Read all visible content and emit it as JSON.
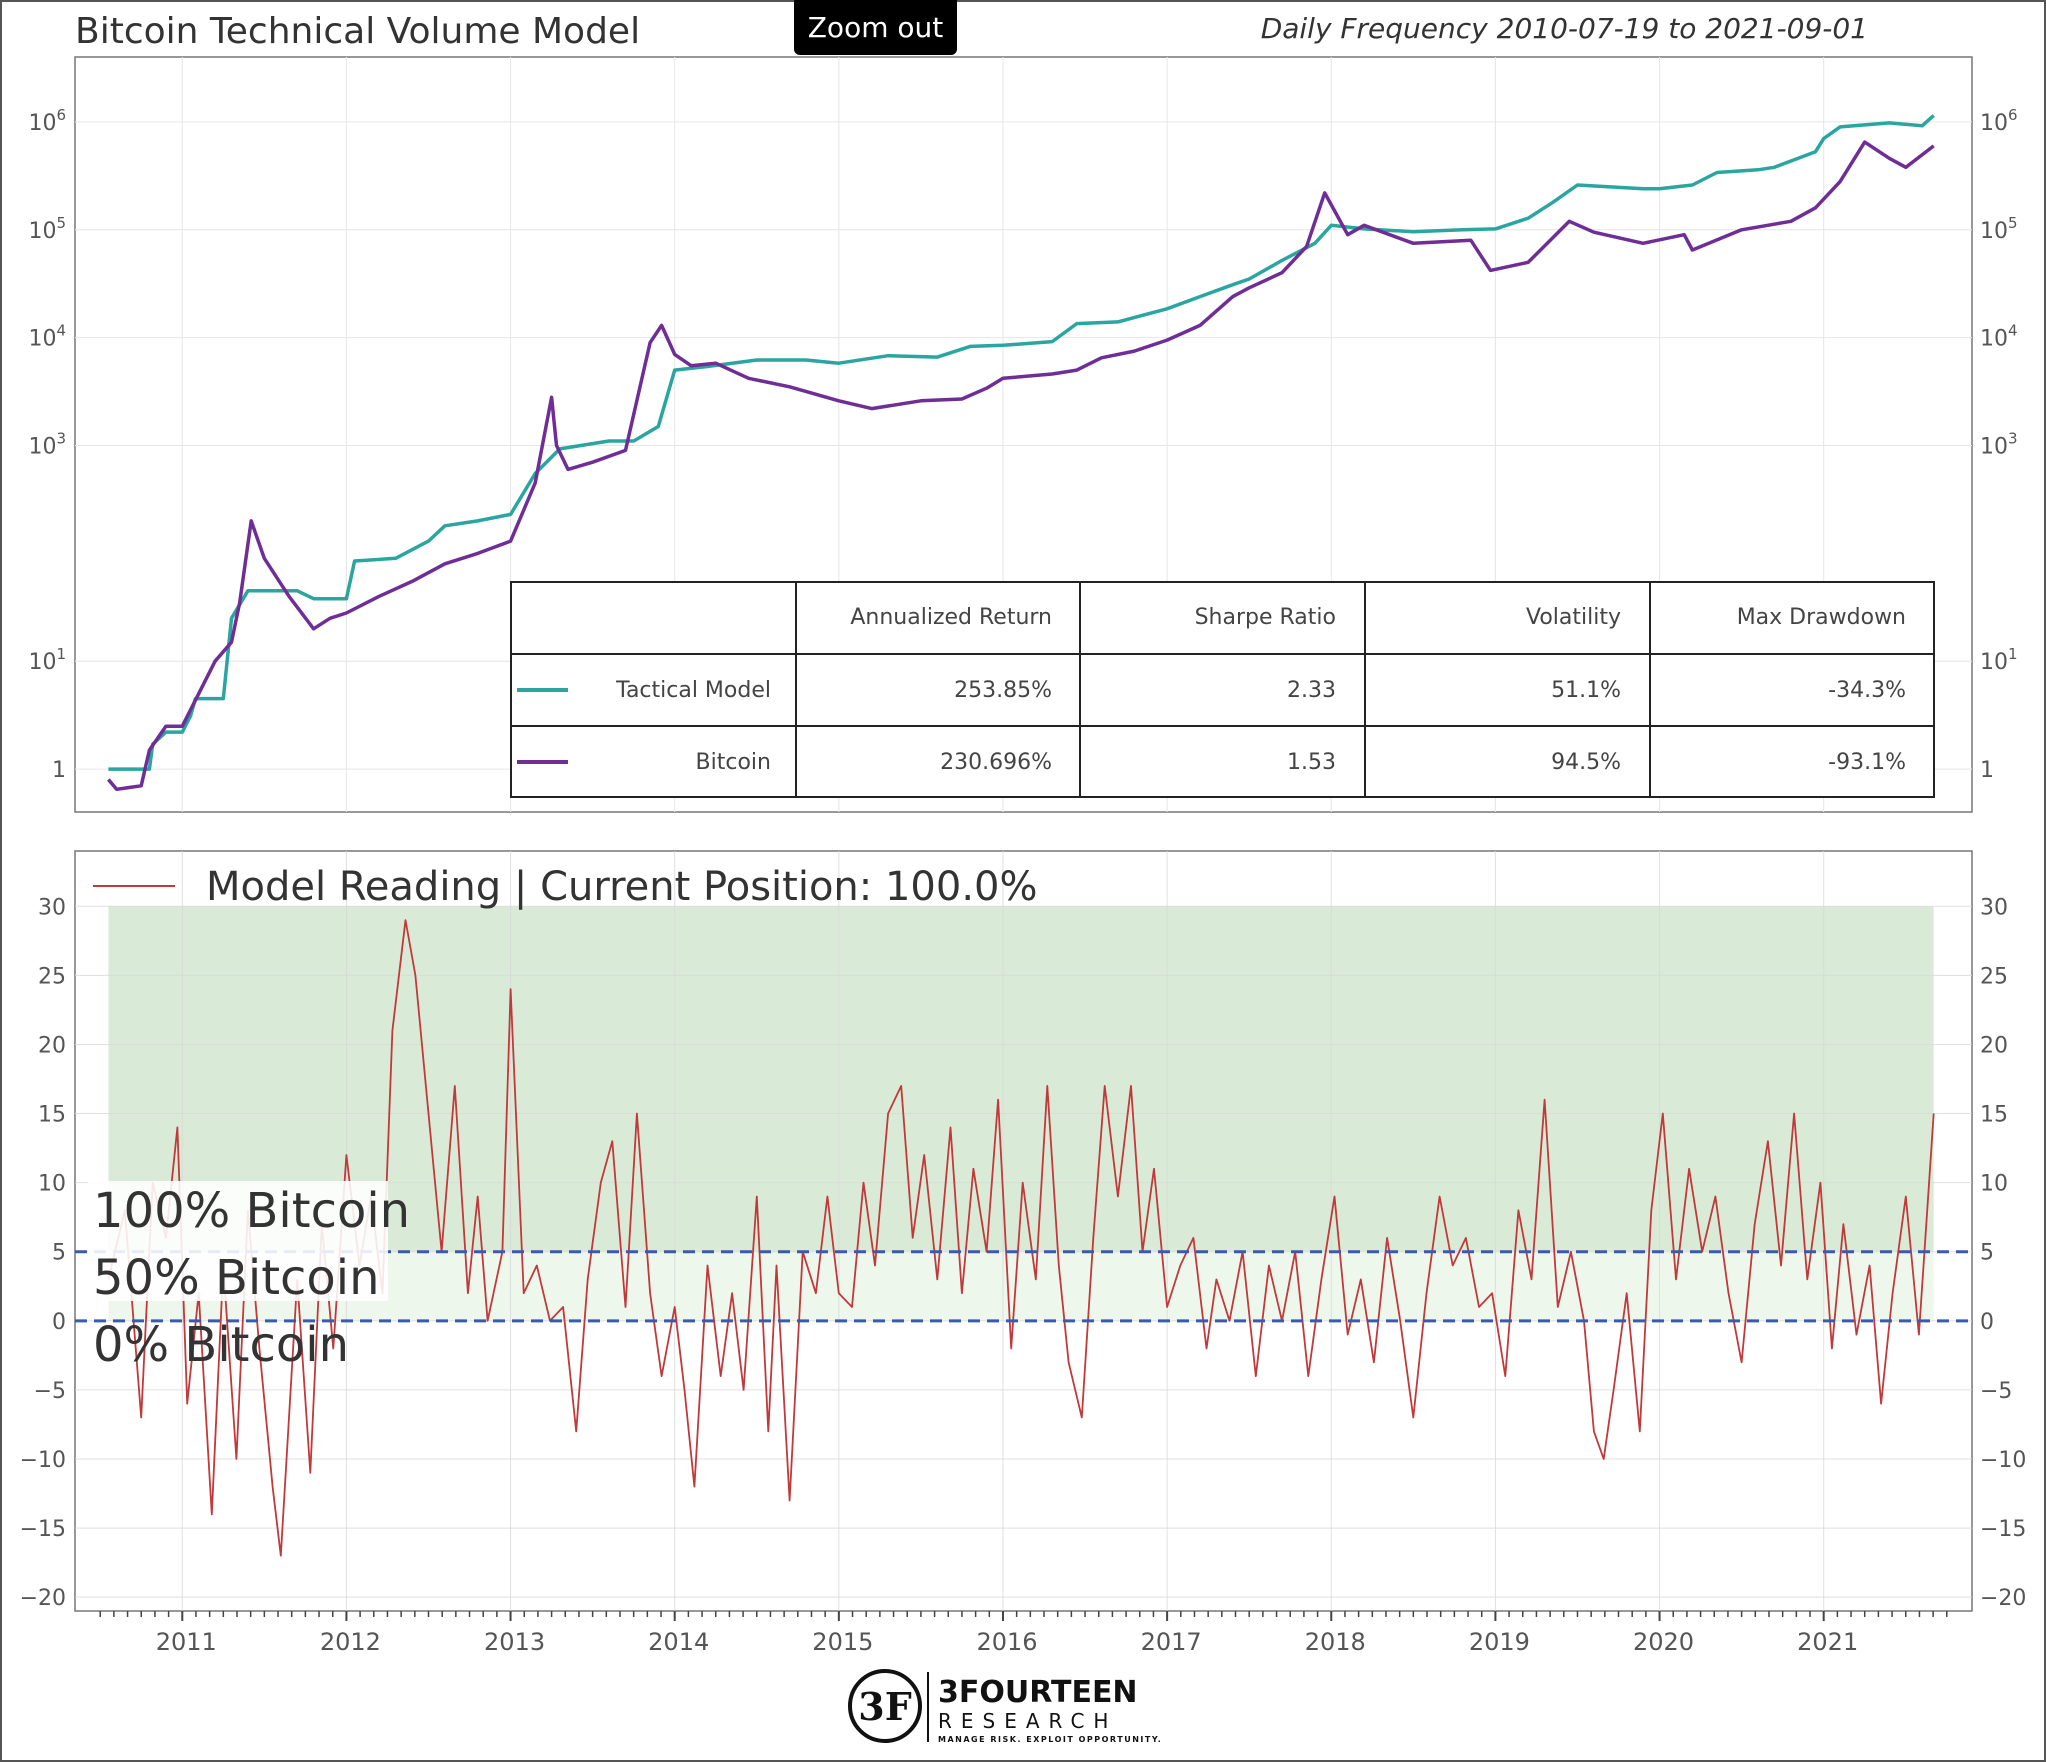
{
  "header": {
    "title": "Bitcoin Technical Volume Model",
    "subtitle": "Daily Frequency 2010-07-19 to 2021-09-01",
    "zoom_button": "Zoom out"
  },
  "colors": {
    "tactical": "#2aa59f",
    "bitcoin": "#6f2d96",
    "reading": "#c0393b",
    "band_high": "#d9ebd7",
    "band_mid": "#eef7ec",
    "threshold": "#3b5ba8"
  },
  "stats_table": {
    "headers": [
      "",
      "Annualized Return",
      "Sharpe Ratio",
      "Volatility",
      "Max Drawdown"
    ],
    "rows": [
      {
        "name": "Tactical Model",
        "annualized_return": "253.85%",
        "sharpe_ratio": "2.33",
        "volatility": "51.1%",
        "max_drawdown": "-34.3%"
      },
      {
        "name": "Bitcoin",
        "annualized_return": "230.696%",
        "sharpe_ratio": "1.53",
        "volatility": "94.5%",
        "max_drawdown": "-93.1%"
      }
    ]
  },
  "bottom_panel": {
    "legend_label": "Model Reading | Current Position: 100.0%",
    "zone_labels": [
      "100% Bitcoin",
      "50% Bitcoin",
      "0% Bitcoin"
    ]
  },
  "footer": {
    "logo_mark": "3F",
    "logo_name": "3FOURTEEN",
    "logo_sub": "RESEARCH",
    "logo_tagline": "MANAGE RISK. EXPLOIT OPPORTUNITY."
  },
  "chart_data": [
    {
      "type": "line",
      "scale": "log",
      "ylim": [
        0.4,
        4000000
      ],
      "xlim": [
        2010.45,
        2021.8
      ],
      "yticks": [
        1,
        10,
        1000,
        10000,
        100000,
        1000000
      ],
      "ytick_labels": [
        {
          "base": "1",
          "exp": ""
        },
        {
          "base": "10",
          "exp": "1"
        },
        {
          "base": "10",
          "exp": "3"
        },
        {
          "base": "10",
          "exp": "4"
        },
        {
          "base": "10",
          "exp": "5"
        },
        {
          "base": "10",
          "exp": "6"
        }
      ],
      "grid": true,
      "series": [
        {
          "name": "Tactical Model",
          "x": [
            2010.55,
            2010.8,
            2010.82,
            2010.9,
            2011.0,
            2011.05,
            2011.08,
            2011.25,
            2011.3,
            2011.4,
            2011.7,
            2011.8,
            2011.9,
            2012.0,
            2012.05,
            2012.3,
            2012.5,
            2012.6,
            2012.8,
            2013.0,
            2013.15,
            2013.3,
            2013.6,
            2013.75,
            2013.9,
            2014.0,
            2014.2,
            2014.5,
            2014.8,
            2015.0,
            2015.3,
            2015.6,
            2015.8,
            2016.0,
            2016.3,
            2016.45,
            2016.7,
            2017.0,
            2017.2,
            2017.4,
            2017.5,
            2017.7,
            2017.9,
            2018.0,
            2018.2,
            2018.5,
            2018.8,
            2019.0,
            2019.2,
            2019.35,
            2019.5,
            2019.9,
            2020.0,
            2020.2,
            2020.35,
            2020.6,
            2020.7,
            2020.95,
            2021.0,
            2021.1,
            2021.4,
            2021.6,
            2021.67
          ],
          "y": [
            1,
            1,
            1.7,
            2.2,
            2.2,
            3.1,
            4.5,
            4.5,
            25,
            45,
            45,
            38,
            38,
            38,
            85,
            90,
            130,
            180,
            200,
            230,
            550,
            930,
            1100,
            1100,
            1500,
            5000,
            5400,
            6200,
            6200,
            5800,
            6800,
            6600,
            8300,
            8500,
            9200,
            13500,
            14000,
            18500,
            24000,
            31000,
            35000,
            52000,
            75000,
            110000,
            102000,
            96000,
            100000,
            102000,
            128000,
            180000,
            260000,
            240000,
            240000,
            260000,
            340000,
            360000,
            380000,
            530000,
            700000,
            900000,
            980000,
            920000,
            1150000
          ]
        },
        {
          "name": "Bitcoin",
          "x": [
            2010.55,
            2010.6,
            2010.75,
            2010.8,
            2010.9,
            2011.0,
            2011.1,
            2011.2,
            2011.3,
            2011.35,
            2011.42,
            2011.5,
            2011.65,
            2011.8,
            2011.9,
            2012.0,
            2012.2,
            2012.4,
            2012.6,
            2012.8,
            2013.0,
            2013.15,
            2013.25,
            2013.28,
            2013.35,
            2013.5,
            2013.7,
            2013.85,
            2013.92,
            2014.0,
            2014.1,
            2014.25,
            2014.45,
            2014.7,
            2015.0,
            2015.2,
            2015.5,
            2015.75,
            2015.9,
            2016.0,
            2016.3,
            2016.45,
            2016.6,
            2016.8,
            2017.0,
            2017.2,
            2017.4,
            2017.5,
            2017.7,
            2017.85,
            2017.96,
            2018.1,
            2018.2,
            2018.5,
            2018.85,
            2018.97,
            2019.2,
            2019.45,
            2019.6,
            2019.9,
            2020.15,
            2020.2,
            2020.5,
            2020.8,
            2020.95,
            2021.1,
            2021.25,
            2021.4,
            2021.5,
            2021.67
          ],
          "y": [
            0.8,
            0.65,
            0.7,
            1.5,
            2.5,
            2.5,
            5,
            10,
            15,
            35,
            200,
            90,
            40,
            20,
            25,
            28,
            40,
            55,
            80,
            100,
            130,
            450,
            2800,
            1000,
            600,
            700,
            900,
            9000,
            13000,
            7000,
            5500,
            5800,
            4200,
            3500,
            2600,
            2200,
            2600,
            2700,
            3400,
            4200,
            4600,
            5000,
            6500,
            7500,
            9500,
            13000,
            24000,
            29000,
            40000,
            70000,
            220000,
            90000,
            110000,
            75000,
            80000,
            42000,
            50000,
            120000,
            95000,
            75000,
            90000,
            65000,
            100000,
            120000,
            160000,
            280000,
            650000,
            460000,
            380000,
            600000
          ]
        }
      ]
    },
    {
      "type": "line",
      "legend": "Model Reading | Current Position: 100.0%",
      "ylim": [
        -21,
        34
      ],
      "xlim": [
        2010.45,
        2021.8
      ],
      "yticks": [
        30,
        25,
        20,
        15,
        10,
        5,
        0,
        -5,
        -10,
        -15,
        -20
      ],
      "xticks": [
        2011,
        2012,
        2013,
        2014,
        2015,
        2016,
        2017,
        2018,
        2019,
        2020,
        2021
      ],
      "thresholds": [
        5,
        0
      ],
      "bands": [
        {
          "from": 5,
          "to": 30
        },
        {
          "from": 0,
          "to": 5
        }
      ],
      "grid": true,
      "series": [
        {
          "name": "Model Reading",
          "x": [
            2010.55,
            2010.65,
            2010.75,
            2010.82,
            2010.9,
            2010.97,
            2011.03,
            2011.1,
            2011.18,
            2011.25,
            2011.33,
            2011.4,
            2011.47,
            2011.55,
            2011.6,
            2011.7,
            2011.78,
            2011.85,
            2011.92,
            2012.0,
            2012.08,
            2012.15,
            2012.22,
            2012.28,
            2012.36,
            2012.42,
            2012.5,
            2012.58,
            2012.66,
            2012.74,
            2012.8,
            2012.86,
            2012.95,
            2013.0,
            2013.08,
            2013.16,
            2013.24,
            2013.32,
            2013.4,
            2013.47,
            2013.55,
            2013.62,
            2013.7,
            2013.77,
            2013.85,
            2013.92,
            2014.0,
            2014.06,
            2014.12,
            2014.2,
            2014.28,
            2014.35,
            2014.42,
            2014.5,
            2014.57,
            2014.62,
            2014.7,
            2014.78,
            2014.86,
            2014.93,
            2015.0,
            2015.08,
            2015.15,
            2015.22,
            2015.3,
            2015.38,
            2015.45,
            2015.52,
            2015.6,
            2015.68,
            2015.75,
            2015.82,
            2015.9,
            2015.97,
            2016.05,
            2016.12,
            2016.2,
            2016.27,
            2016.34,
            2016.4,
            2016.48,
            2016.55,
            2016.62,
            2016.7,
            2016.78,
            2016.85,
            2016.92,
            2017.0,
            2017.08,
            2017.16,
            2017.24,
            2017.3,
            2017.38,
            2017.46,
            2017.54,
            2017.62,
            2017.7,
            2017.78,
            2017.86,
            2017.94,
            2018.02,
            2018.1,
            2018.18,
            2018.26,
            2018.34,
            2018.42,
            2018.5,
            2018.58,
            2018.66,
            2018.74,
            2018.82,
            2018.9,
            2018.98,
            2019.06,
            2019.14,
            2019.22,
            2019.3,
            2019.38,
            2019.46,
            2019.54,
            2019.6,
            2019.66,
            2019.72,
            2019.8,
            2019.88,
            2019.95,
            2020.02,
            2020.1,
            2020.18,
            2020.26,
            2020.34,
            2020.42,
            2020.5,
            2020.58,
            2020.66,
            2020.74,
            2020.82,
            2020.9,
            2020.98,
            2021.05,
            2021.12,
            2021.2,
            2021.28,
            2021.35,
            2021.42,
            2021.5,
            2021.58,
            2021.67
          ],
          "y": [
            3,
            8,
            -7,
            10,
            6,
            14,
            -6,
            2,
            -14,
            4,
            -10,
            8,
            -2,
            -12,
            -17,
            3,
            -11,
            7,
            -2,
            12,
            4,
            9,
            2,
            21,
            29,
            25,
            15,
            5,
            17,
            2,
            9,
            0,
            5,
            24,
            2,
            4,
            0,
            1,
            -8,
            3,
            10,
            13,
            1,
            15,
            2,
            -4,
            1,
            -5,
            -12,
            4,
            -4,
            2,
            -5,
            9,
            -8,
            4,
            -13,
            5,
            2,
            9,
            2,
            1,
            10,
            4,
            15,
            17,
            6,
            12,
            3,
            14,
            2,
            11,
            5,
            16,
            -2,
            10,
            3,
            17,
            4,
            -3,
            -7,
            6,
            17,
            9,
            17,
            5,
            11,
            1,
            4,
            6,
            -2,
            3,
            0,
            5,
            -4,
            4,
            0,
            5,
            -4,
            3,
            9,
            -1,
            3,
            -3,
            6,
            0,
            -7,
            2,
            9,
            4,
            6,
            1,
            2,
            -4,
            8,
            3,
            16,
            1,
            5,
            0,
            -8,
            -10,
            -5,
            2,
            -8,
            8,
            15,
            3,
            11,
            5,
            9,
            2,
            -3,
            7,
            13,
            4,
            15,
            3,
            10,
            -2,
            7,
            -1,
            4,
            -6,
            2,
            9,
            -1,
            15
          ]
        }
      ]
    }
  ]
}
